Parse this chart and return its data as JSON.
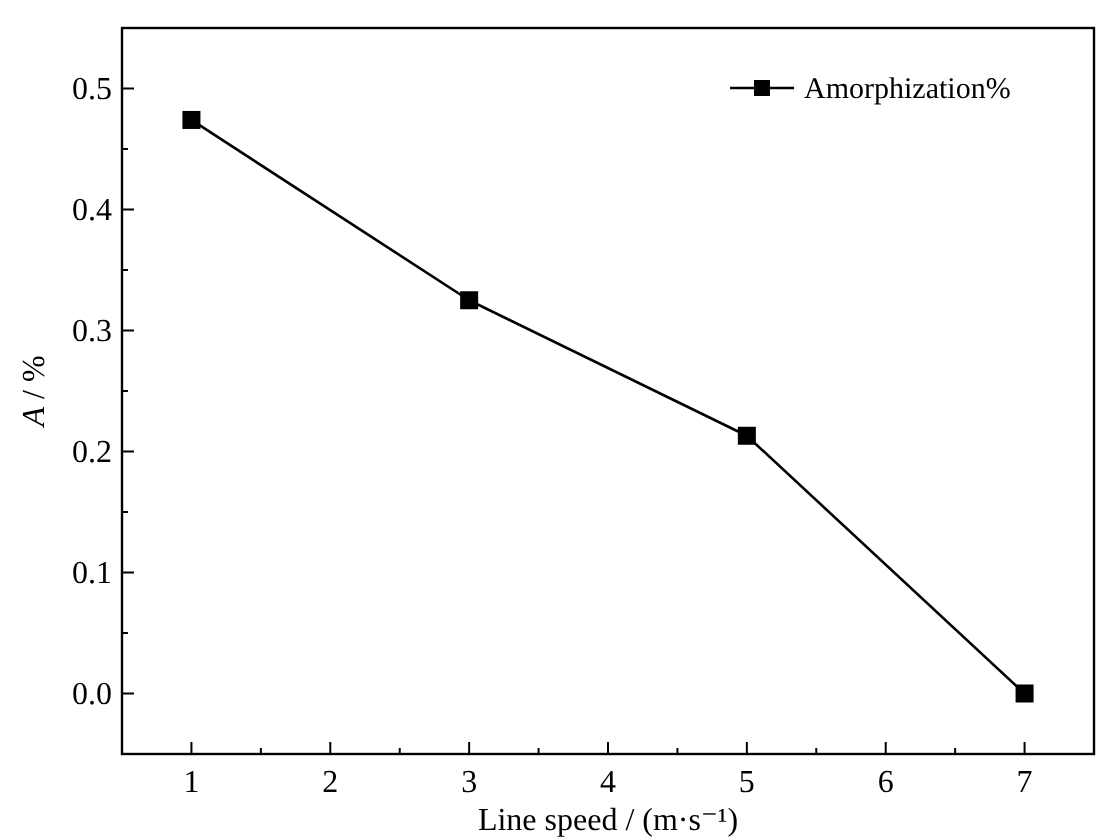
{
  "chart_data": {
    "type": "line",
    "xlabel": "Line speed / (m·s⁻¹)",
    "ylabel": "A / %",
    "x": [
      1,
      3,
      5,
      7
    ],
    "series": [
      {
        "name": "Amorphization%",
        "color": "#000000",
        "values": [
          0.474,
          0.325,
          0.213,
          0
        ]
      }
    ],
    "xlim": [
      0.5,
      7.5
    ],
    "xticks": [
      1,
      {
        "value": 1.5,
        "label": null
      },
      2,
      {
        "value": 2.5,
        "label": null
      },
      3,
      {
        "value": 3.5,
        "label": null
      },
      4,
      {
        "value": 4.5,
        "label": null
      },
      5,
      {
        "value": 5.5,
        "label": null
      },
      6,
      {
        "value": 6.5,
        "label": null
      },
      7
    ],
    "ylim": [
      -0.05,
      0.55
    ],
    "yticks": [
      {
        "value": 0,
        "label": "0.0"
      },
      {
        "value": 0.05,
        "label": null
      },
      0.1,
      {
        "value": 0.15,
        "label": null
      },
      0.2,
      {
        "value": 0.25,
        "label": null
      },
      0.3,
      {
        "value": 0.35,
        "label": null
      },
      0.4,
      {
        "value": 0.45,
        "label": null
      },
      0.5
    ],
    "marker": "square",
    "line_style": "solid",
    "legend": "top right",
    "grid": false
  }
}
